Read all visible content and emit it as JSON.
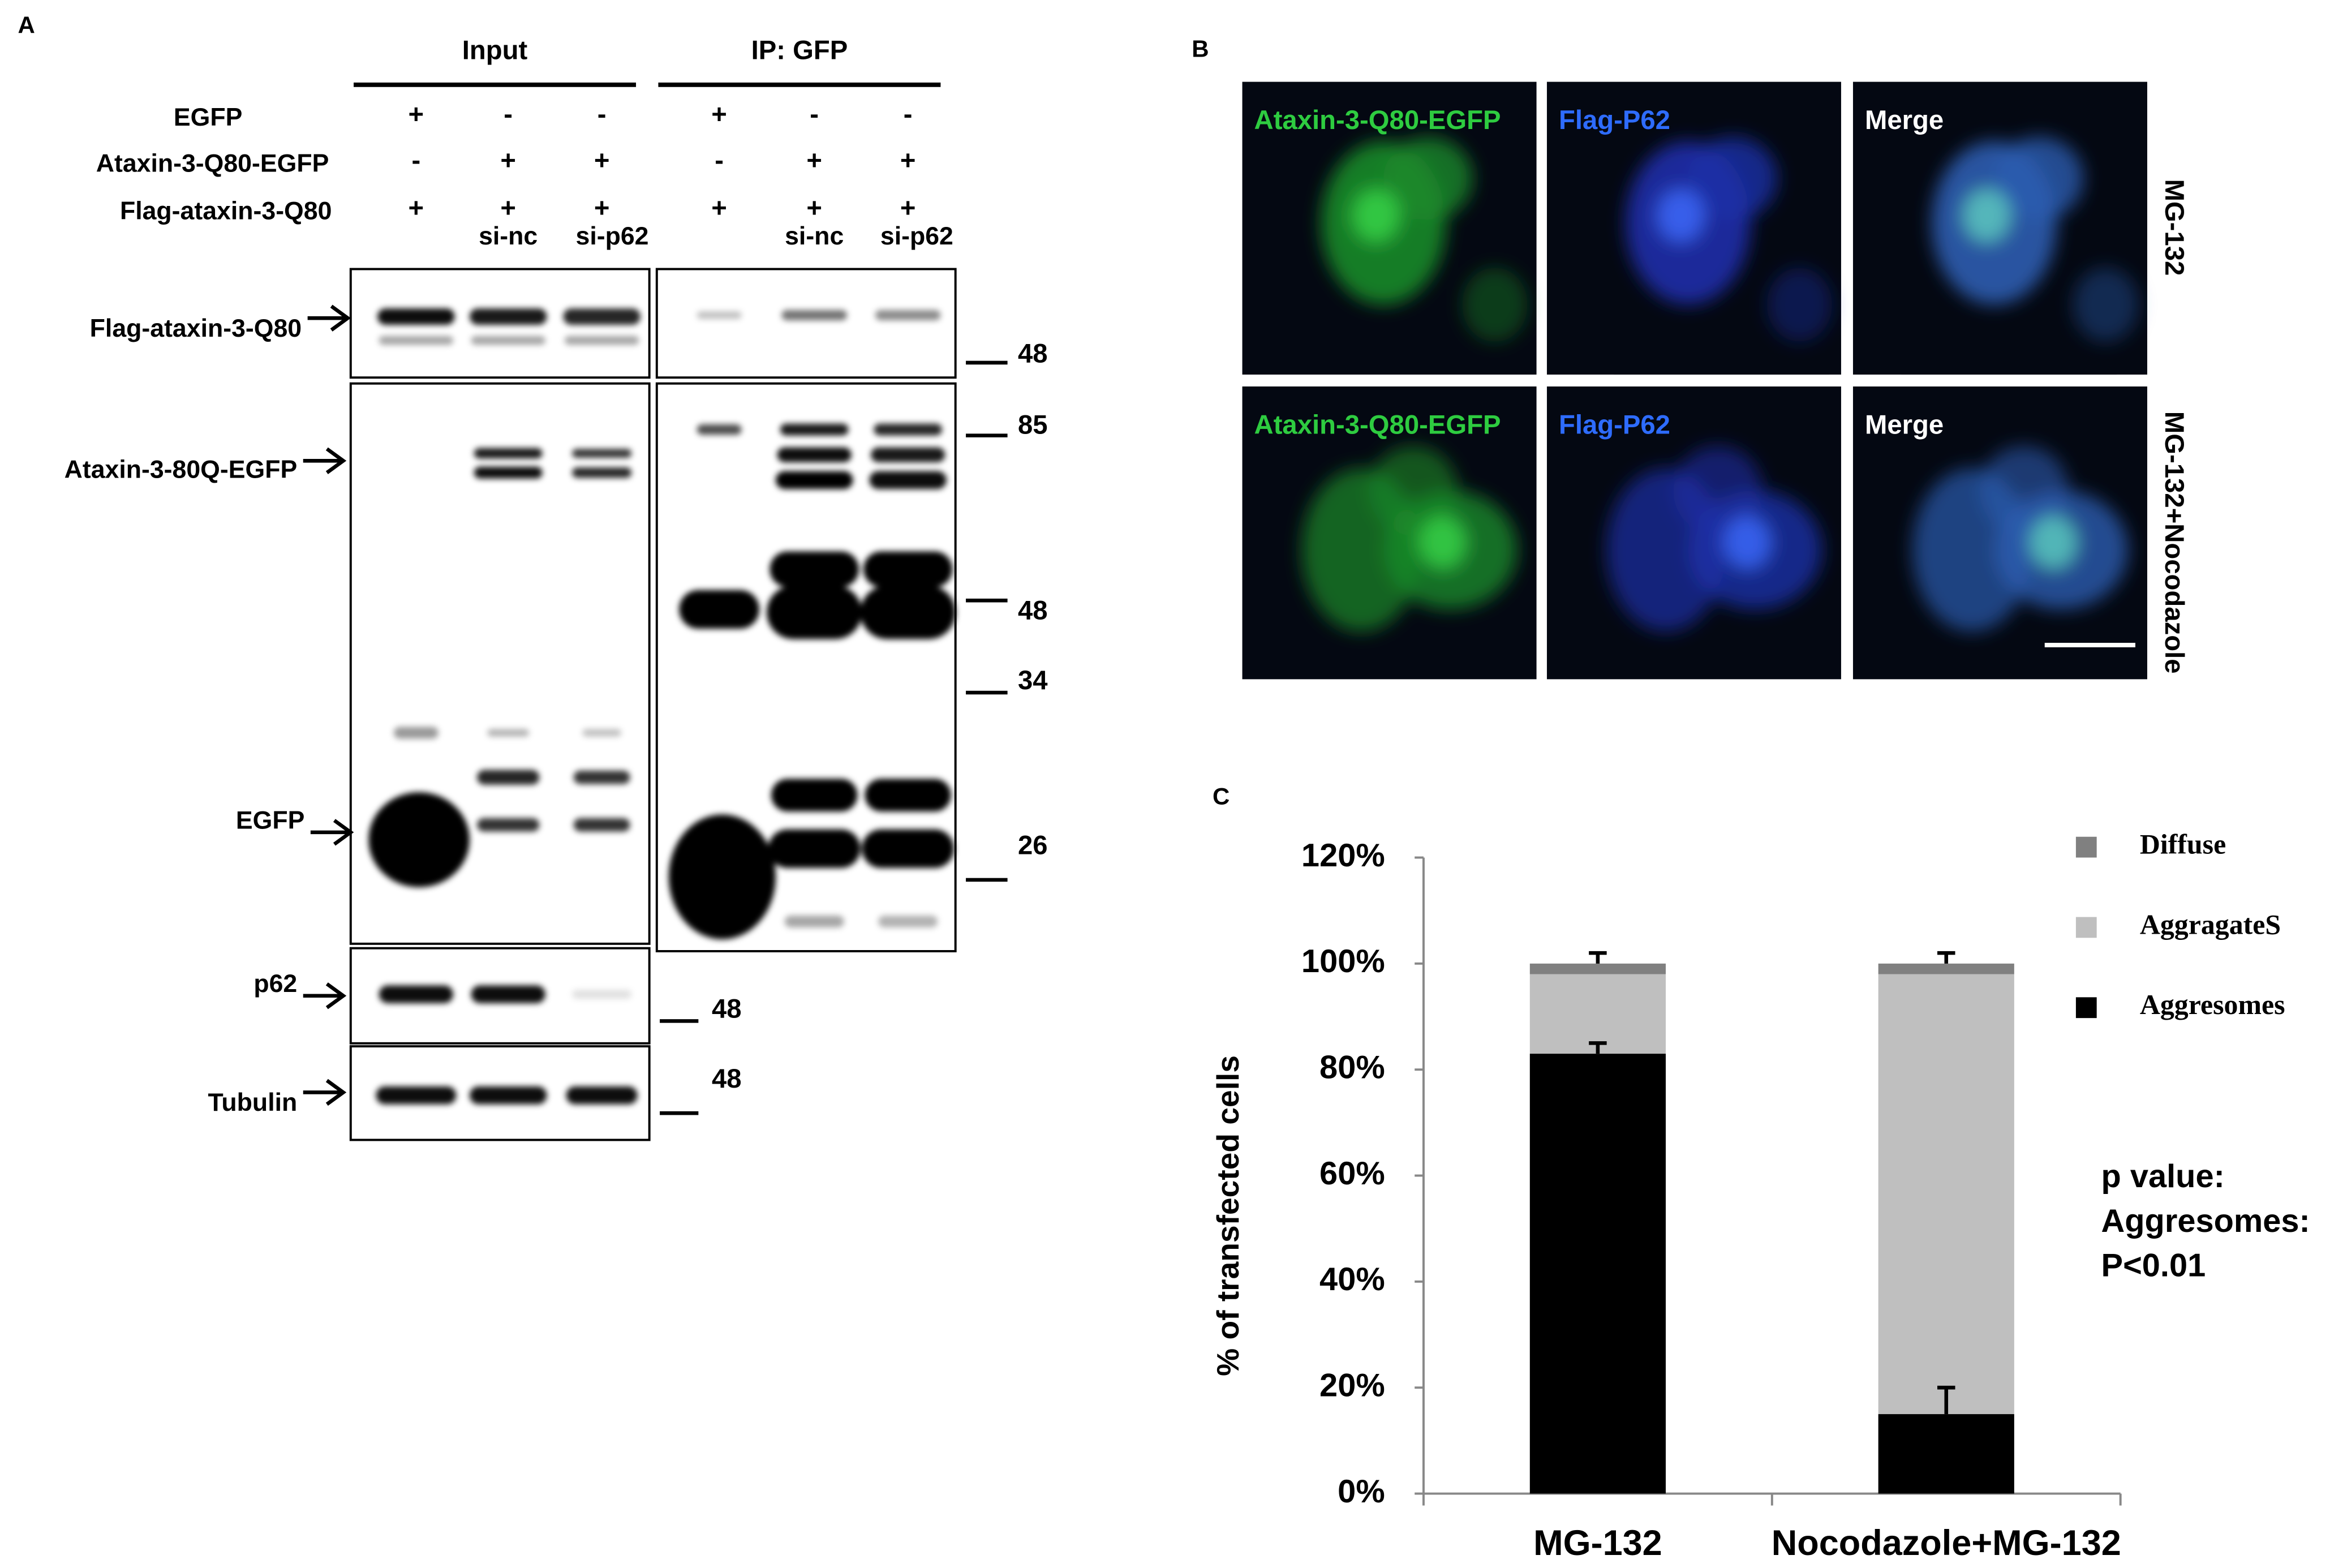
{
  "panel_a": {
    "label": "A",
    "headers": [
      "Input",
      "IP: GFP"
    ],
    "conditions": [
      {
        "name": "EGFP",
        "signs": [
          "+",
          "-",
          "-",
          "+",
          "-",
          "-"
        ]
      },
      {
        "name": "Ataxin-3-Q80-EGFP",
        "signs": [
          "-",
          "+",
          "+",
          "-",
          "+",
          "+"
        ]
      },
      {
        "name": "Flag-ataxin-3-Q80",
        "signs": [
          "+",
          "+",
          "+",
          "+",
          "+",
          "+"
        ]
      }
    ],
    "sirna_labels": [
      "si-nc",
      "si-p62",
      "si-nc",
      "si-p62"
    ],
    "blot_labels": [
      "Flag-ataxin-3-Q80",
      "Ataxin-3-80Q-EGFP",
      "EGFP",
      "p62",
      "Tubulin"
    ],
    "markers": [
      48,
      85,
      48,
      34,
      26,
      48,
      48
    ]
  },
  "panel_b": {
    "label": "B",
    "rows": [
      {
        "condition": "MG-132",
        "channels": [
          "Ataxin-3-Q80-EGFP",
          "Flag-P62",
          "Merge"
        ]
      },
      {
        "condition": "MG-132+Nocodazole",
        "channels": [
          "Ataxin-3-Q80-EGFP",
          "Flag-P62",
          "Merge"
        ]
      }
    ]
  },
  "panel_c": {
    "label": "C"
  },
  "chart_data": {
    "type": "stacked_bar",
    "y_label": "% of transfected cells",
    "categories": [
      "MG-132",
      "Nocodazole+MG-132"
    ],
    "series": [
      {
        "name": "Aggresomes",
        "color": "#000000",
        "values": [
          83,
          15
        ],
        "errors": [
          2,
          5
        ]
      },
      {
        "name": "AggragateS",
        "color": "#bfbfbf",
        "values": [
          15,
          83
        ],
        "errors": [
          null,
          null
        ]
      },
      {
        "name": "Diffuse",
        "color": "#808080",
        "values": [
          2,
          2
        ],
        "errors": [
          2,
          2
        ]
      }
    ],
    "ylim": [
      0,
      120
    ],
    "yticks": [
      {
        "value": 0,
        "label": "0%"
      },
      {
        "value": 20,
        "label": "20%"
      },
      {
        "value": 40,
        "label": "40%"
      },
      {
        "value": 60,
        "label": "60%"
      },
      {
        "value": 80,
        "label": "80%"
      },
      {
        "value": 100,
        "label": "100%"
      },
      {
        "value": 120,
        "label": "120%"
      }
    ],
    "grid": false,
    "legend": "right",
    "annotation": [
      "p value:",
      "Aggresomes:",
      "P<0.01"
    ]
  }
}
